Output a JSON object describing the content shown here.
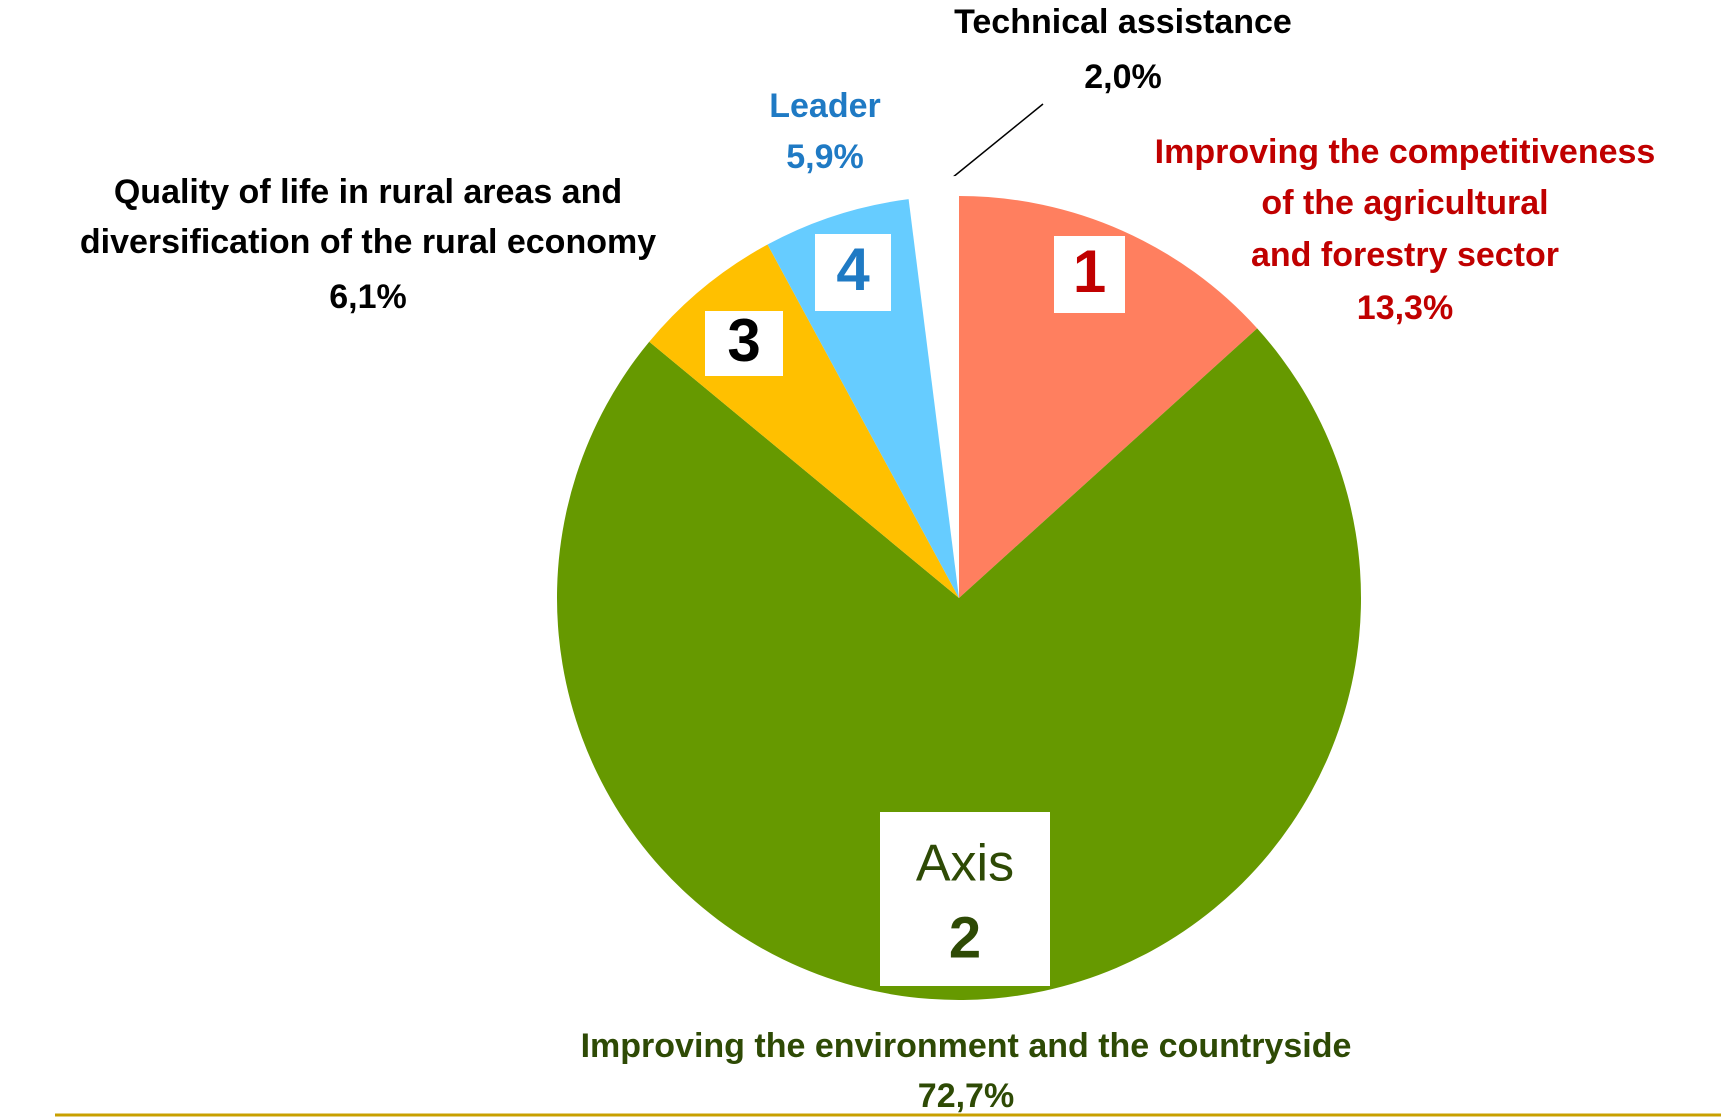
{
  "chart_data": {
    "type": "pie",
    "categories": [
      [
        "Improving the competitiveness",
        "of the agricultural",
        "and forestry sector"
      ],
      [
        "Improving the environment and the countryside"
      ],
      [
        "Quality of life in rural areas and",
        "diversification of the rural economy"
      ],
      [
        "Leader"
      ],
      [
        "Technical assistance"
      ]
    ],
    "values": [
      13.3,
      72.7,
      6.1,
      5.9,
      2.0
    ],
    "value_labels": [
      "13,3%",
      "72,7%",
      "6,1%",
      "5,9%",
      "2,0%"
    ],
    "colors": [
      "#ff7f5f",
      "#669900",
      "#ffc000",
      "#66ccff",
      "#ffffff"
    ],
    "label_colors": [
      "#c00000",
      "#2e4a05",
      "#000000",
      "#1f7ac4",
      "#000000"
    ],
    "markers": [
      [
        "1"
      ],
      [
        "Axis",
        "2"
      ],
      [
        "3"
      ],
      [
        "4"
      ],
      null
    ]
  }
}
